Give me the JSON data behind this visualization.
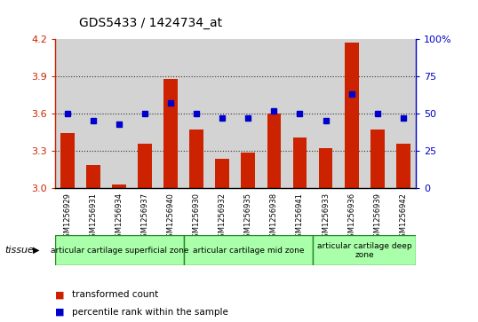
{
  "title": "GDS5433 / 1424734_at",
  "samples": [
    "GSM1256929",
    "GSM1256931",
    "GSM1256934",
    "GSM1256937",
    "GSM1256940",
    "GSM1256930",
    "GSM1256932",
    "GSM1256935",
    "GSM1256938",
    "GSM1256941",
    "GSM1256933",
    "GSM1256936",
    "GSM1256939",
    "GSM1256942"
  ],
  "transformed_count": [
    3.44,
    3.19,
    3.03,
    3.36,
    3.88,
    3.47,
    3.24,
    3.29,
    3.6,
    3.41,
    3.32,
    4.17,
    3.47,
    3.36
  ],
  "percentile_rank": [
    50,
    45,
    43,
    50,
    57,
    50,
    47,
    47,
    52,
    50,
    45,
    63,
    50,
    47
  ],
  "ylim_left": [
    3.0,
    4.2
  ],
  "ylim_right": [
    0,
    100
  ],
  "yticks_left": [
    3.0,
    3.3,
    3.6,
    3.9,
    4.2
  ],
  "yticks_right": [
    0,
    25,
    50,
    75,
    100
  ],
  "bar_color": "#cc2200",
  "dot_color": "#0000cc",
  "col_bg_color": "#d3d3d3",
  "plot_bg": "#ffffff",
  "spine_color": "#000000",
  "grid_dotted_color": "#333333",
  "tissue_label": "tissue",
  "groups": [
    {
      "label": "articular cartilage superficial zone",
      "count": 5,
      "color": "#aaffaa"
    },
    {
      "label": "articular cartilage mid zone",
      "count": 5,
      "color": "#aaffaa"
    },
    {
      "label": "articular cartilage deep\nzone",
      "count": 4,
      "color": "#aaffaa"
    }
  ],
  "legend_bar": "transformed count",
  "legend_dot": "percentile rank within the sample"
}
